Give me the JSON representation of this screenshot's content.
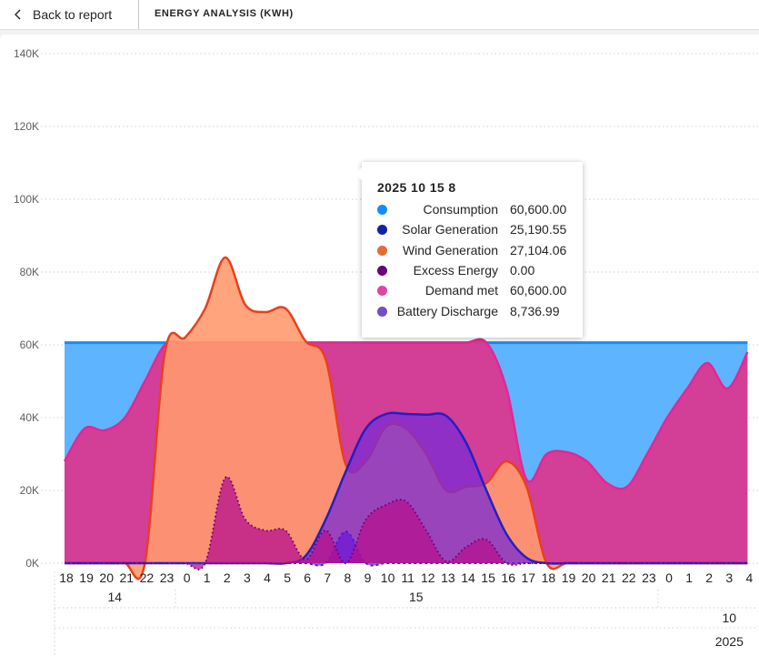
{
  "header": {
    "back_label": "Back to report",
    "title": "ENERGY ANALYSIS (KWH)"
  },
  "tooltip": {
    "title": "2025 10 15 8",
    "rows": [
      {
        "name": "Consumption",
        "value": "60,600.00",
        "color": "#118dff"
      },
      {
        "name": "Solar Generation",
        "value": "25,190.55",
        "color": "#12239e"
      },
      {
        "name": "Wind Generation",
        "value": "27,104.06",
        "color": "#e66c37"
      },
      {
        "name": "Excess Energy",
        "value": "0.00",
        "color": "#6b007b"
      },
      {
        "name": "Demand met",
        "value": "60,600.00",
        "color": "#e044a7"
      },
      {
        "name": "Battery Discharge",
        "value": "8,736.99",
        "color": "#744ec2"
      }
    ]
  },
  "chart_data": {
    "type": "area",
    "title": "ENERGY ANALYSIS (KWH)",
    "ylim": [
      0,
      140000
    ],
    "yticks": [
      {
        "value": 0,
        "label": "0K"
      },
      {
        "value": 20000,
        "label": "20K"
      },
      {
        "value": 40000,
        "label": "40K"
      },
      {
        "value": 60000,
        "label": "60K"
      },
      {
        "value": 80000,
        "label": "80K"
      },
      {
        "value": 100000,
        "label": "100K"
      },
      {
        "value": 120000,
        "label": "120K"
      },
      {
        "value": 140000,
        "label": "140K"
      }
    ],
    "x_hours": [
      "18",
      "19",
      "20",
      "21",
      "22",
      "23",
      "0",
      "1",
      "2",
      "3",
      "4",
      "5",
      "6",
      "7",
      "8",
      "9",
      "10",
      "11",
      "12",
      "13",
      "14",
      "15",
      "16",
      "17",
      "18",
      "19",
      "20",
      "21",
      "22",
      "23",
      "0",
      "1",
      "2",
      "3",
      "4"
    ],
    "x_days": [
      {
        "label": "14",
        "start": 0,
        "end": 5
      },
      {
        "label": "15",
        "start": 6,
        "end": 29
      },
      {
        "label": "",
        "start": 30,
        "end": 34
      }
    ],
    "x_months": [
      {
        "label": "10",
        "at": 33
      }
    ],
    "x_years": [
      {
        "label": "2025",
        "at": 33
      }
    ],
    "grid": true,
    "series": [
      {
        "name": "Consumption",
        "color": "#118dff",
        "values": [
          60600,
          60600,
          60600,
          60600,
          60600,
          60600,
          60600,
          60600,
          60600,
          60600,
          60600,
          60600,
          60600,
          60600,
          60600,
          60600,
          60600,
          60600,
          60600,
          60600,
          60600,
          60600,
          60600,
          60600,
          60600,
          60600,
          60600,
          60600,
          60600,
          60600,
          60600,
          60600,
          60600,
          60600,
          60600
        ]
      },
      {
        "name": "Demand met",
        "color": "#e044a7",
        "values": [
          28000,
          37000,
          36500,
          40000,
          50000,
          60000,
          60600,
          60600,
          60600,
          60600,
          60600,
          60600,
          60600,
          60600,
          60600,
          60600,
          60600,
          60600,
          60600,
          60600,
          60600,
          60600,
          48000,
          23000,
          30000,
          30500,
          28000,
          22000,
          21000,
          30000,
          40000,
          48000,
          55000,
          48000,
          58000
        ]
      },
      {
        "name": "Wind Generation",
        "color": "#e66c37",
        "values": [
          0,
          0,
          0,
          0,
          0,
          58000,
          62000,
          70000,
          84000,
          71000,
          69000,
          70000,
          61000,
          56000,
          27104,
          28000,
          37500,
          37000,
          30000,
          20000,
          21000,
          22000,
          28000,
          21000,
          0,
          0,
          0,
          0,
          0,
          0,
          0,
          0,
          0,
          0,
          0
        ]
      },
      {
        "name": "Solar Generation",
        "color": "#12239e",
        "values": [
          0,
          0,
          0,
          0,
          0,
          0,
          0,
          0,
          0,
          0,
          0,
          0,
          2000,
          12000,
          25190.55,
          37000,
          41000,
          41000,
          40800,
          40500,
          33000,
          20000,
          8000,
          1500,
          0,
          0,
          0,
          0,
          0,
          0,
          0,
          0,
          0,
          0,
          0
        ]
      },
      {
        "name": "Battery Discharge",
        "color": "#744ec2",
        "values": [
          0,
          0,
          0,
          0,
          0,
          0,
          0,
          0,
          0,
          0,
          0,
          0,
          0,
          0,
          8736.99,
          0,
          0,
          0,
          0,
          0,
          0,
          0,
          0,
          0,
          0,
          0,
          0,
          0,
          0,
          0,
          0,
          0,
          0,
          0,
          0
        ]
      },
      {
        "name": "Excess Energy",
        "color": "#6b007b",
        "values": [
          0,
          0,
          0,
          0,
          0,
          0,
          0,
          0,
          23500,
          12000,
          9000,
          9000,
          1000,
          9000,
          0,
          12000,
          16000,
          17000,
          9000,
          500,
          4500,
          6500,
          0,
          0,
          0,
          0,
          0,
          0,
          0,
          0,
          0,
          0,
          0,
          0,
          0
        ]
      }
    ]
  }
}
